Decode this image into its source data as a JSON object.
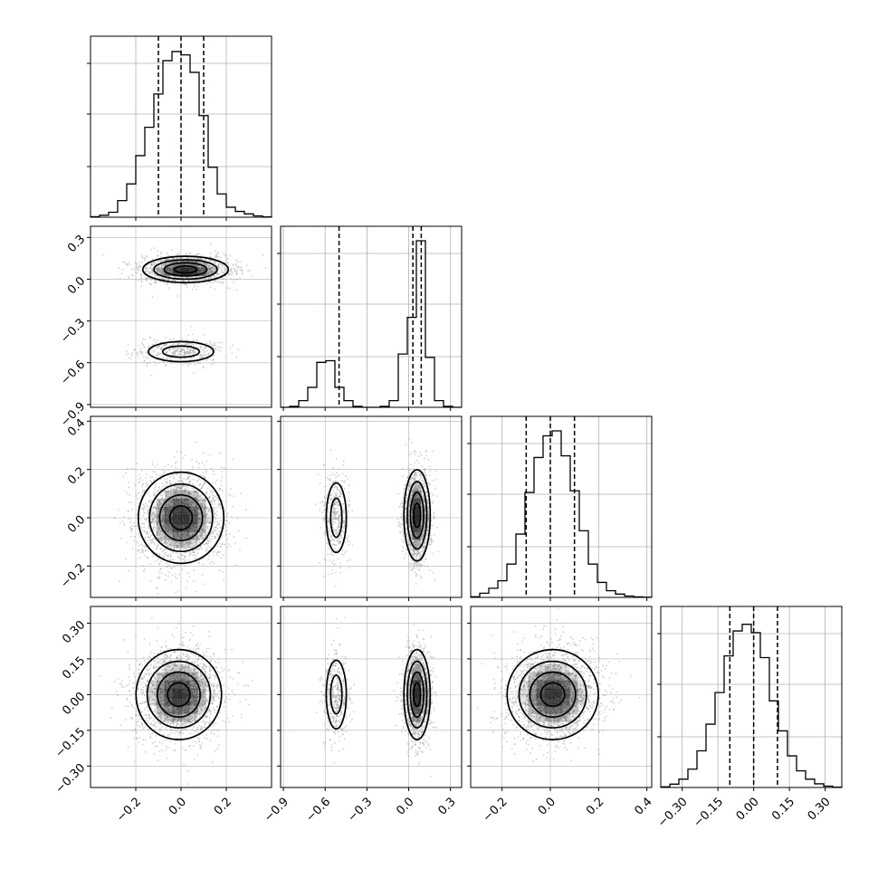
{
  "chart_data": {
    "type": "corner",
    "grid": true,
    "title": "",
    "parameters": [
      {
        "range": [
          -0.4,
          0.4
        ],
        "bottom_ticks": [
          "−0.2",
          "0.0",
          "0.2"
        ],
        "bottom_tick_values": [
          -0.2,
          0.0,
          0.2
        ],
        "left_ticks": [],
        "left_tick_values": []
      },
      {
        "range": [
          -0.92,
          0.38
        ],
        "bottom_ticks": [
          "−0.9",
          "−0.6",
          "−0.3",
          "0.0",
          "0.3"
        ],
        "bottom_tick_values": [
          -0.9,
          -0.6,
          -0.3,
          0.0,
          0.3
        ],
        "left_ticks": [
          "0.3",
          "0.0",
          "−0.3",
          "−0.6",
          "−0.9"
        ],
        "left_tick_values": [
          0.3,
          0.0,
          -0.3,
          -0.6,
          -0.9
        ]
      },
      {
        "range": [
          -0.33,
          0.42
        ],
        "bottom_ticks": [
          "−0.2",
          "0.0",
          "0.2",
          "0.4"
        ],
        "bottom_tick_values": [
          -0.2,
          0.0,
          0.2,
          0.4
        ],
        "left_ticks": [
          "0.4",
          "0.2",
          "0.0",
          "−0.2"
        ],
        "left_tick_values": [
          0.4,
          0.2,
          0.0,
          -0.2
        ]
      },
      {
        "range": [
          -0.39,
          0.37
        ],
        "bottom_ticks": [
          "−0.30",
          "−0.15",
          "0.00",
          "0.15",
          "0.30"
        ],
        "bottom_tick_values": [
          -0.3,
          -0.15,
          0.0,
          0.15,
          0.3
        ],
        "left_ticks": [
          "0.30",
          "0.15",
          "0.00",
          "−0.15",
          "−0.30"
        ],
        "left_tick_values": [
          0.3,
          0.15,
          0.0,
          -0.15,
          -0.3
        ]
      }
    ],
    "histograms": [
      {
        "param": 0,
        "bins": [
          -0.4,
          -0.36,
          -0.32,
          -0.28,
          -0.24,
          -0.2,
          -0.16,
          -0.12,
          -0.08,
          -0.04,
          0.0,
          0.04,
          0.08,
          0.12,
          0.16,
          0.2,
          0.24,
          0.28,
          0.32,
          0.36,
          0.4
        ],
        "heights": [
          0.003,
          0.012,
          0.03,
          0.1,
          0.2,
          0.37,
          0.54,
          0.74,
          0.94,
          0.995,
          0.975,
          0.87,
          0.61,
          0.3,
          0.14,
          0.06,
          0.035,
          0.02,
          0.008,
          0.002
        ],
        "quantiles": [
          -0.1,
          0.0,
          0.1
        ]
      },
      {
        "param": 1,
        "bins": [
          -0.92,
          -0.855,
          -0.79,
          -0.725,
          -0.66,
          -0.595,
          -0.53,
          -0.465,
          -0.4,
          -0.335,
          -0.27,
          -0.205,
          -0.14,
          -0.075,
          -0.01,
          0.055,
          0.12,
          0.185,
          0.25,
          0.315,
          0.38
        ],
        "heights": [
          0.0,
          0.006,
          0.04,
          0.12,
          0.27,
          0.28,
          0.12,
          0.04,
          0.006,
          0.0,
          0.0,
          0.006,
          0.04,
          0.32,
          0.54,
          1.0,
          0.3,
          0.04,
          0.006,
          0.0
        ],
        "quantiles": [
          -0.5,
          0.03,
          0.09
        ]
      },
      {
        "param": 2,
        "bins": [
          -0.33,
          -0.2925,
          -0.255,
          -0.2175,
          -0.18,
          -0.1425,
          -0.105,
          -0.0675,
          -0.03,
          0.0075,
          0.045,
          0.0825,
          0.12,
          0.1575,
          0.195,
          0.2325,
          0.27,
          0.3075,
          0.345,
          0.3825,
          0.42
        ],
        "heights": [
          0.004,
          0.025,
          0.055,
          0.1,
          0.2,
          0.38,
          0.63,
          0.84,
          0.97,
          1.0,
          0.85,
          0.64,
          0.4,
          0.2,
          0.09,
          0.04,
          0.02,
          0.008,
          0.003,
          0.001
        ],
        "quantiles": [
          -0.1,
          0.0,
          0.1
        ]
      },
      {
        "param": 3,
        "bins": [
          -0.39,
          -0.352,
          -0.314,
          -0.276,
          -0.238,
          -0.2,
          -0.162,
          -0.124,
          -0.086,
          -0.048,
          -0.01,
          0.028,
          0.066,
          0.104,
          0.142,
          0.18,
          0.218,
          0.256,
          0.294,
          0.332,
          0.37
        ],
        "heights": [
          0.004,
          0.02,
          0.05,
          0.11,
          0.22,
          0.38,
          0.57,
          0.79,
          0.94,
          0.98,
          0.93,
          0.78,
          0.52,
          0.34,
          0.19,
          0.1,
          0.05,
          0.022,
          0.008,
          0.002
        ],
        "quantiles": [
          -0.1,
          0.0,
          0.1
        ]
      }
    ],
    "pairs": [
      {
        "x_param": 0,
        "y_param": 1,
        "modes": [
          {
            "x": 0.02,
            "y": 0.07,
            "sx": 0.09,
            "sy": 0.045,
            "w": 0.8
          },
          {
            "x": 0.0,
            "y": -0.52,
            "sx": 0.09,
            "sy": 0.045,
            "w": 0.2
          }
        ]
      },
      {
        "x_param": 0,
        "y_param": 2,
        "modes": [
          {
            "x": 0.0,
            "y": 0.0,
            "sx": 0.09,
            "sy": 0.09,
            "w": 1.0
          }
        ]
      },
      {
        "x_param": 1,
        "y_param": 2,
        "modes": [
          {
            "x": 0.06,
            "y": 0.01,
            "sx": 0.045,
            "sy": 0.09,
            "w": 0.8
          },
          {
            "x": -0.52,
            "y": 0.0,
            "sx": 0.045,
            "sy": 0.09,
            "w": 0.2
          }
        ]
      },
      {
        "x_param": 0,
        "y_param": 3,
        "modes": [
          {
            "x": -0.01,
            "y": 0.0,
            "sx": 0.09,
            "sy": 0.09,
            "w": 1.0
          }
        ]
      },
      {
        "x_param": 1,
        "y_param": 3,
        "modes": [
          {
            "x": 0.06,
            "y": 0.0,
            "sx": 0.045,
            "sy": 0.09,
            "w": 0.8
          },
          {
            "x": -0.52,
            "y": 0.0,
            "sx": 0.045,
            "sy": 0.09,
            "w": 0.2
          }
        ]
      },
      {
        "x_param": 2,
        "y_param": 3,
        "modes": [
          {
            "x": 0.01,
            "y": 0.0,
            "sx": 0.09,
            "sy": 0.09,
            "w": 1.0
          }
        ]
      }
    ],
    "colors": {
      "line": "#000000",
      "grid": "#b0b0b0",
      "scatter": "#9a9a9a",
      "density": "#000000"
    }
  }
}
